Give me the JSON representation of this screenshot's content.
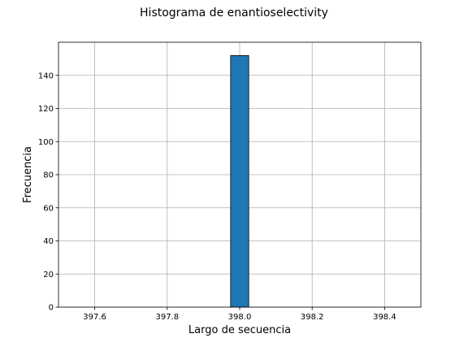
{
  "chart_data": {
    "type": "bar",
    "title": "Histograma de enantioselectivity",
    "xlabel": "Largo de secuencia",
    "ylabel": "Frecuencia",
    "bins": [
      {
        "x0": 397.975,
        "x1": 398.025,
        "count": 152
      }
    ],
    "xlim": [
      397.5,
      398.5
    ],
    "ylim": [
      0,
      160
    ],
    "xticks": [
      397.6,
      397.8,
      398.0,
      398.2,
      398.4
    ],
    "xtick_labels": [
      "397.6",
      "397.8",
      "398.0",
      "398.2",
      "398.4"
    ],
    "yticks": [
      0,
      20,
      40,
      60,
      80,
      100,
      120,
      140
    ],
    "ytick_labels": [
      "0",
      "20",
      "40",
      "60",
      "80",
      "100",
      "120",
      "140"
    ],
    "grid": true,
    "bar_color": "#1f77b4",
    "edge_color": "#000000"
  }
}
